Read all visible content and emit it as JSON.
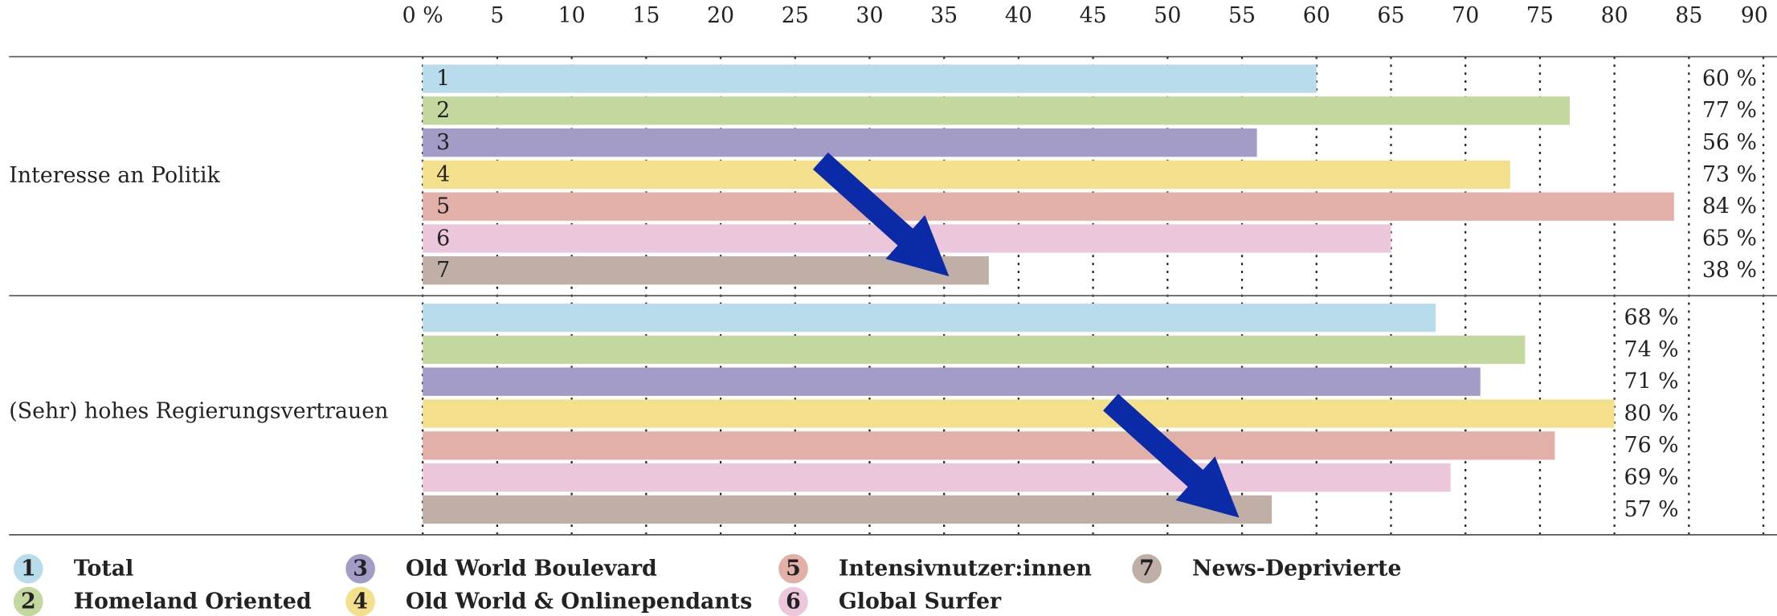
{
  "chart_data": {
    "type": "bar",
    "orientation": "horizontal",
    "categories": [
      "Interesse an Politik",
      "(Sehr) hohes Regierungsvertrauen"
    ],
    "xlim": [
      0,
      90
    ],
    "xticks": [
      {
        "value": 0,
        "label": "0 %"
      },
      5,
      10,
      15,
      20,
      25,
      30,
      35,
      40,
      45,
      50,
      55,
      60,
      65,
      70,
      75,
      80,
      85,
      90
    ],
    "grid": true,
    "series": [
      {
        "number": "1",
        "name": "Total",
        "color": "#b9dcec",
        "values": [
          60,
          68
        ],
        "value_labels": [
          "60 %",
          "68 %"
        ]
      },
      {
        "number": "2",
        "name": "Homeland Oriented",
        "color": "#c3d89e",
        "values": [
          77,
          74
        ],
        "value_labels": [
          "77 %",
          "74 %"
        ]
      },
      {
        "number": "3",
        "name": "Old World Boulevard",
        "color": "#a39cc6",
        "values": [
          56,
          71
        ],
        "value_labels": [
          "56 %",
          "71 %"
        ]
      },
      {
        "number": "4",
        "name": "Old World & Onlinependants",
        "color": "#f4e08c",
        "values": [
          73,
          80
        ],
        "value_labels": [
          "73 %",
          "80 %"
        ]
      },
      {
        "number": "5",
        "name": "Intensivnutzer:innen",
        "color": "#e3b0a8",
        "values": [
          84,
          76
        ],
        "value_labels": [
          "84 %",
          "76 %"
        ]
      },
      {
        "number": "6",
        "name": "Global Surfer",
        "color": "#ecc7db",
        "values": [
          65,
          69
        ],
        "value_labels": [
          "65 %",
          "69 %"
        ]
      },
      {
        "number": "7",
        "name": "News-Deprivierte",
        "color": "#bfafa6",
        "values": [
          38,
          57
        ],
        "value_labels": [
          "38 %",
          "57 %"
        ]
      }
    ]
  }
}
